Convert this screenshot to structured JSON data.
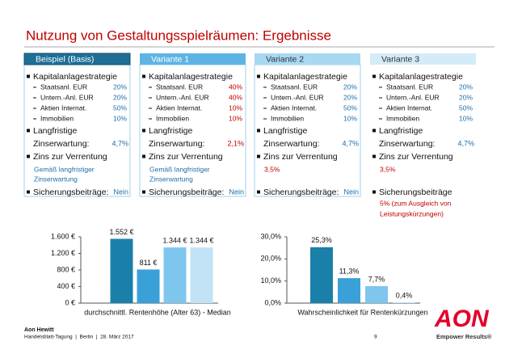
{
  "title": "Nutzung von Gestaltungsspielräumen: Ergebnisse",
  "columns": [
    {
      "header": "Beispiel (Basis)",
      "header_color": "#1e6e96",
      "header_text_color": "#ffffff",
      "strategy": "Kapitalanlagestrategie",
      "assets": [
        {
          "name": "Staatsanl. EUR",
          "value": "20%"
        },
        {
          "name": "Untern.-Anl. EUR",
          "value": "20%"
        },
        {
          "name": "Aktien Internat.",
          "value": "50%"
        },
        {
          "name": "Immobilien",
          "value": "10%"
        }
      ],
      "asset_color": "#1f6fa8",
      "rate_label": [
        "Langfristige",
        "Zinserwartung:"
      ],
      "rate": "4,7%",
      "rate_color": "#1f6fa8",
      "pension_label": "Zins zur Verrentung",
      "pension": [
        "Gemäß langfristiger",
        "Zinserwartung"
      ],
      "pension_color": "#1f6fa8",
      "security_label": "Sicherungsbeiträge:",
      "security": [
        "Nein"
      ],
      "security_color": "#1f6fa8"
    },
    {
      "header": "Variante 1",
      "header_color": "#5db4e4",
      "header_text_color": "#ffffff",
      "strategy": "Kapitalanlagestrategie",
      "assets": [
        {
          "name": "Staatsanl. EUR",
          "value": "40%"
        },
        {
          "name": "Untern.-Anl. EUR",
          "value": "40%"
        },
        {
          "name": "Aktien Internat.",
          "value": "10%"
        },
        {
          "name": "Immobilien",
          "value": "10%"
        }
      ],
      "asset_color": "#c00000",
      "rate_label": [
        "Langfristige",
        "Zinserwartung:"
      ],
      "rate": "2,1%",
      "rate_color": "#c00000",
      "pension_label": "Zins zur Verrentung",
      "pension": [
        "Gemäß langfristiger",
        "Zinserwartung"
      ],
      "pension_color": "#1f6fa8",
      "security_label": "Sicherungsbeiträge:",
      "security": [
        "Nein"
      ],
      "security_color": "#1f6fa8"
    },
    {
      "header": "Variante 2",
      "header_color": "#a8d8f2",
      "header_text_color": "#333333",
      "strategy": "Kapitalanlagestrategie",
      "assets": [
        {
          "name": "Staatsanl. EUR",
          "value": "20%"
        },
        {
          "name": "Untern.-Anl. EUR",
          "value": "20%"
        },
        {
          "name": "Aktien Internat.",
          "value": "50%"
        },
        {
          "name": "Immobilien",
          "value": "10%"
        }
      ],
      "asset_color": "#1f6fa8",
      "rate_label": [
        "Langfristige",
        "Zinserwartung:"
      ],
      "rate": "4,7%",
      "rate_color": "#1f6fa8",
      "pension_label": "Zins zur Verrentung",
      "pension": [
        "3,5%"
      ],
      "pension_color": "#c00000",
      "security_label": "Sicherungsbeiträge:",
      "security": [
        "Nein"
      ],
      "security_color": "#1f6fa8"
    },
    {
      "header": "Variante 3",
      "header_color": "#d4ebf8",
      "header_text_color": "#333333",
      "strategy": "Kapitalanlagestrategie",
      "assets": [
        {
          "name": "Staatsanl. EUR",
          "value": "20%"
        },
        {
          "name": "Untern.-Anl. EUR",
          "value": "20%"
        },
        {
          "name": "Aktien Internat.",
          "value": "50%"
        },
        {
          "name": "Immobilien",
          "value": "10%"
        }
      ],
      "asset_color": "#1f6fa8",
      "rate_label": [
        "Langfristige",
        "Zinserwartung:"
      ],
      "rate": "4,7%",
      "rate_color": "#1f6fa8",
      "pension_label": "Zins zur Verrentung",
      "pension": [
        "3,5%"
      ],
      "pension_color": "#c00000",
      "security_label": "Sicherungsbeiträge",
      "security": [
        "5% (zum Ausgleich von",
        "Leistungskürzungen)"
      ],
      "security_color": "#c00000"
    }
  ],
  "chart_data": [
    {
      "type": "bar",
      "xlabel": "durchschnittl. Rentenhöhe (Alter 63) - Median",
      "categories": [
        null,
        null,
        null,
        null
      ],
      "values": [
        1552,
        811,
        1344,
        1344
      ],
      "value_labels": [
        "1.552 €",
        "811 €",
        "1.344 €",
        "1.344 €"
      ],
      "colors": [
        "#1a80aa",
        "#3aa0d8",
        "#7fc6ee",
        "#c2e3f6"
      ],
      "ylim": [
        0,
        1600
      ],
      "yticks": [
        {
          "value": 0,
          "label": "0 €"
        },
        {
          "value": 400,
          "label": "400 €"
        },
        {
          "value": 800,
          "label": "800 €"
        },
        {
          "value": 1200,
          "label": "1.200 €"
        },
        {
          "value": 1600,
          "label": "1.600 €"
        }
      ]
    },
    {
      "type": "bar",
      "xlabel": "Wahrscheinlichkeit für Rentenkürzungen",
      "categories": [
        null,
        null,
        null,
        null
      ],
      "values": [
        25.3,
        11.3,
        7.7,
        0.4
      ],
      "value_labels": [
        "25,3%",
        "11,3%",
        "7,7%",
        "0,4%"
      ],
      "colors": [
        "#1a80aa",
        "#3aa0d8",
        "#7fc6ee",
        "#c2e3f6"
      ],
      "ylim": [
        0,
        30
      ],
      "yticks": [
        {
          "value": 0,
          "label": "0,0%"
        },
        {
          "value": 10,
          "label": "10,0%"
        },
        {
          "value": 20,
          "label": "20,0%"
        },
        {
          "value": 30,
          "label": "30,0%"
        }
      ]
    }
  ],
  "footer": {
    "company": "Aon Hewitt",
    "event": "Handelsblatt-Tagung  |  Berlin  |  28. März 2017",
    "page": "9",
    "logo": "AON",
    "slogan": "Empower Results®"
  }
}
